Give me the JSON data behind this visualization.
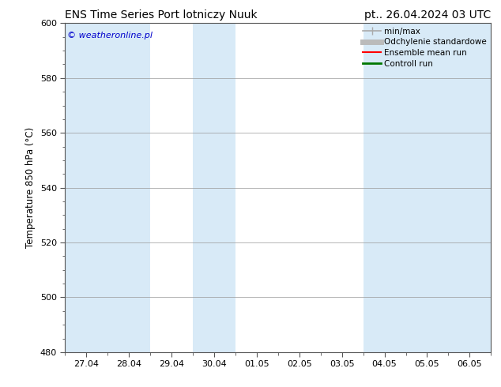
{
  "title_left": "ENS Time Series Port lotniczy Nuuk",
  "title_right": "pt.. 26.04.2024 03 UTC",
  "ylabel": "Temperature 850 hPa (°C)",
  "watermark": "© weatheronline.pl",
  "watermark_color": "#0000cc",
  "ylim": [
    480,
    600
  ],
  "yticks": [
    480,
    500,
    520,
    540,
    560,
    580,
    600
  ],
  "xtick_labels": [
    "27.04",
    "28.04",
    "29.04",
    "30.04",
    "01.05",
    "02.05",
    "03.05",
    "04.05",
    "05.05",
    "06.05"
  ],
  "background_color": "#ffffff",
  "plot_bg_color": "#ffffff",
  "shaded_columns": [
    0,
    1,
    3,
    7,
    8,
    9
  ],
  "shaded_color": "#d8eaf7",
  "border_color": "#555555",
  "legend_entries": [
    {
      "label": "min/max",
      "color": "#aaaaaa",
      "lw": 1.2
    },
    {
      "label": "Odchylenie standardowe",
      "color": "#bbbbbb",
      "lw": 5
    },
    {
      "label": "Ensemble mean run",
      "color": "#ff0000",
      "lw": 1.5
    },
    {
      "label": "Controll run",
      "color": "#007700",
      "lw": 2
    }
  ],
  "n_cols": 10,
  "figsize": [
    6.34,
    4.9
  ],
  "dpi": 100
}
